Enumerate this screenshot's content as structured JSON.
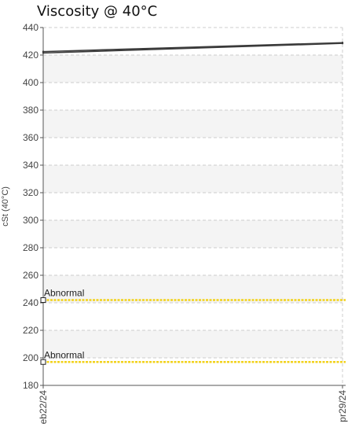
{
  "chart_data": {
    "type": "line",
    "title": "Viscosity @ 40°C",
    "ylabel": "cSt (40°C)",
    "xlabel": "",
    "ylim": [
      180,
      440
    ],
    "y_ticks": [
      440,
      420,
      400,
      380,
      360,
      340,
      320,
      300,
      280,
      260,
      240,
      220,
      200,
      180
    ],
    "x_tick_labels": [
      "eb22/24",
      "pr29/24"
    ],
    "x_ticks": [
      0,
      1
    ],
    "grid": true,
    "series": [
      {
        "x": [
          0,
          1
        ],
        "values": [
          422.5,
          429
        ]
      },
      {
        "x": [
          0,
          1
        ],
        "values": [
          421.5,
          428.5
        ]
      }
    ],
    "thresholds": [
      {
        "label": "Abnormal",
        "value": 242
      },
      {
        "label": "Abnormal",
        "value": 197
      }
    ],
    "colors": {
      "series": "#3a3a3a",
      "threshold": "#f2d21b",
      "band": "#f4f4f4",
      "grid": "#cccccc",
      "axis": "#555555"
    }
  }
}
